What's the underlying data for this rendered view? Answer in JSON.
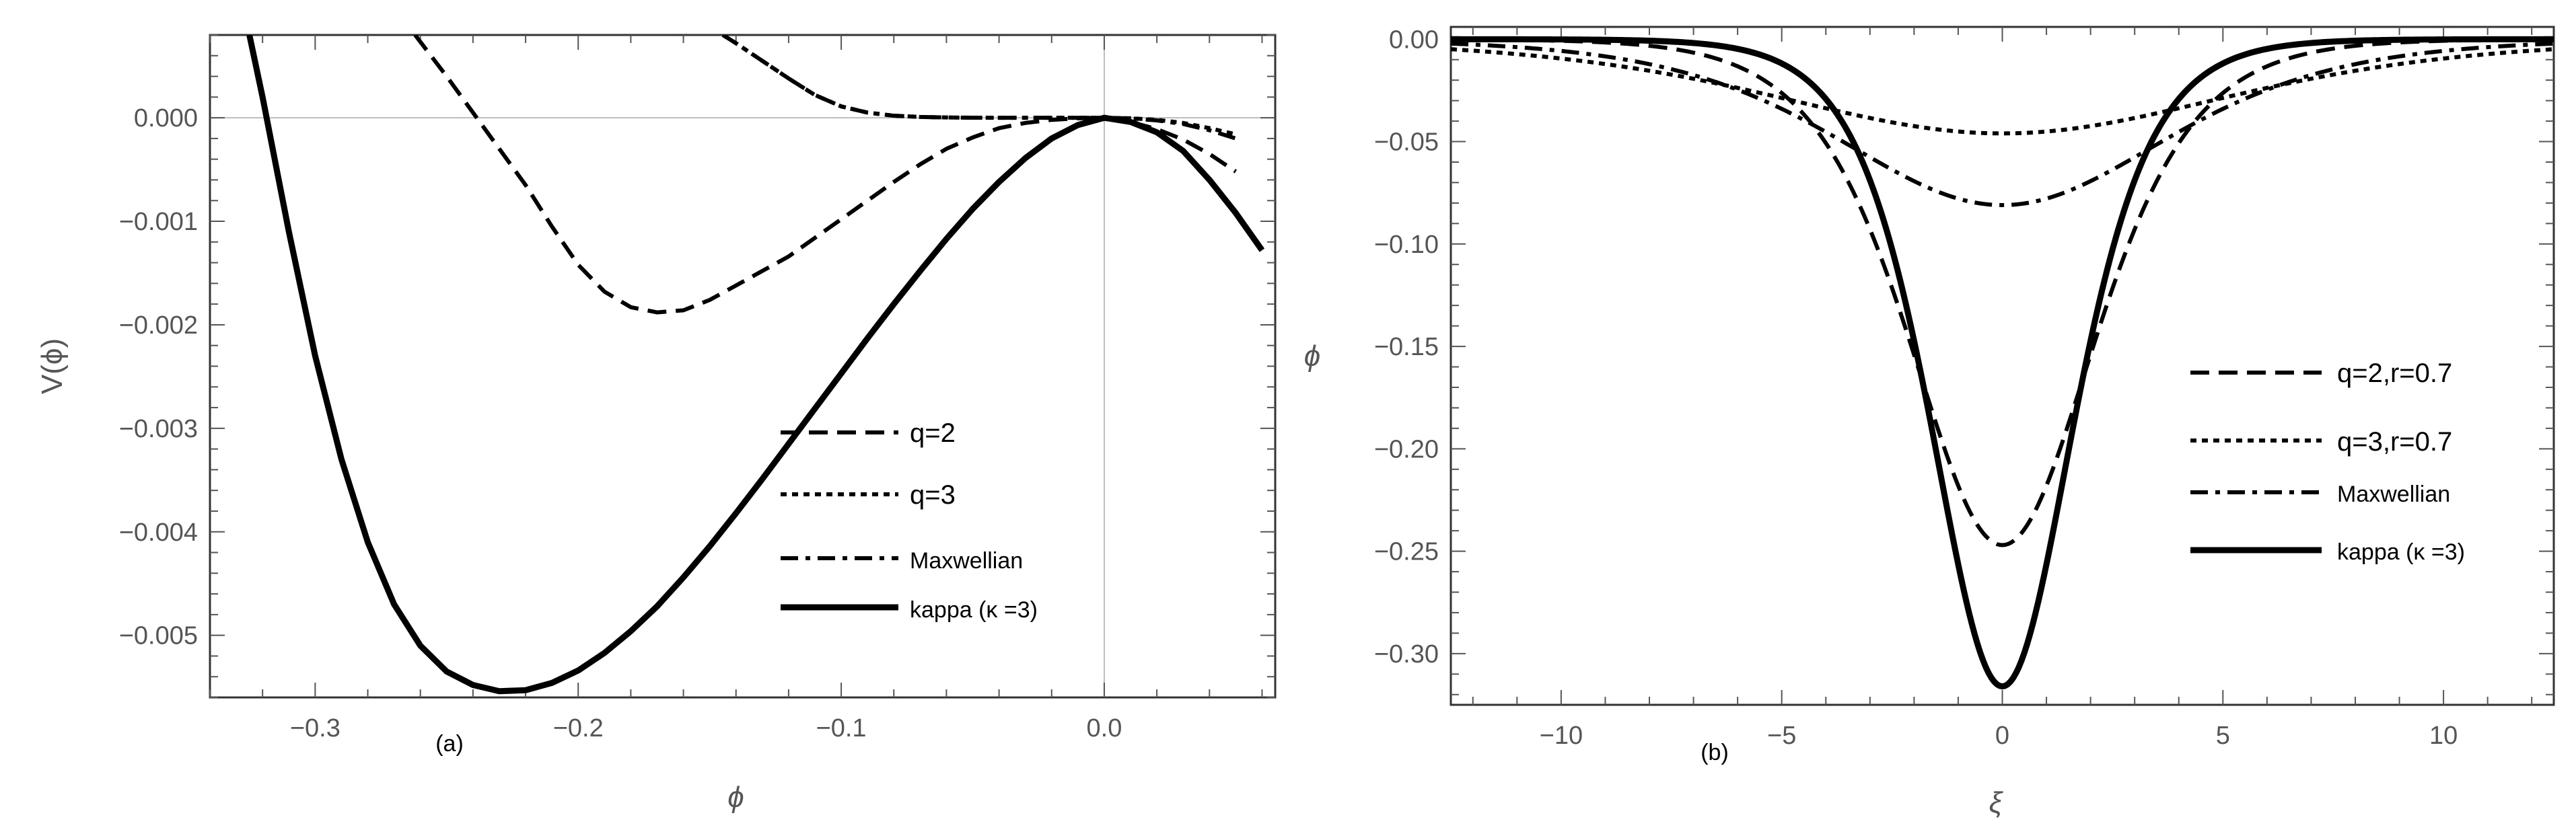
{
  "chart_data": [
    {
      "type": "line",
      "panel_label": "(a)",
      "title": "",
      "xlabel": "ϕ",
      "ylabel": "V(ϕ)",
      "xlim": [
        -0.34,
        0.065
      ],
      "ylim": [
        -0.0056,
        0.0008
      ],
      "xticks": [
        -0.3,
        -0.2,
        -0.1,
        0.0
      ],
      "xtick_labels": [
        "−0.3",
        "−0.2",
        "−0.1",
        "0.0"
      ],
      "yticks": [
        0.0,
        -0.001,
        -0.002,
        -0.003,
        -0.004,
        -0.005
      ],
      "ytick_labels": [
        "0.000",
        "−0.001",
        "−0.002",
        "−0.003",
        "−0.004",
        "−0.005"
      ],
      "grid": false,
      "legend_position": "lower-right",
      "series": [
        {
          "name": "q=2",
          "style": "dashed",
          "x": [
            -0.262,
            -0.25,
            -0.24,
            -0.23,
            -0.22,
            -0.21,
            -0.2,
            -0.19,
            -0.18,
            -0.17,
            -0.16,
            -0.15,
            -0.14,
            -0.13,
            -0.12,
            -0.11,
            -0.1,
            -0.09,
            -0.08,
            -0.07,
            -0.06,
            -0.05,
            -0.04,
            -0.03,
            -0.02,
            -0.01,
            0.0,
            0.01,
            0.02,
            0.03,
            0.04,
            0.05
          ],
          "y": [
            0.0008,
            0.0004,
            5e-05,
            -0.0003,
            -0.00065,
            -0.00105,
            -0.00142,
            -0.00168,
            -0.00183,
            -0.00188,
            -0.00186,
            -0.00176,
            -0.00162,
            -0.00148,
            -0.00134,
            -0.00116,
            -0.00098,
            -0.0008,
            -0.00062,
            -0.00045,
            -0.0003,
            -0.00019,
            -0.0001,
            -5e-05,
            -2e-05,
            -5e-06,
            0.0,
            -4e-05,
            -0.00011,
            -0.00021,
            -0.00035,
            -0.00052
          ]
        },
        {
          "name": "q=3",
          "style": "dotted",
          "x": [
            -0.145,
            -0.14,
            -0.13,
            -0.12,
            -0.11,
            -0.1,
            -0.09,
            -0.08,
            -0.07,
            -0.06,
            -0.05,
            -0.04,
            -0.03,
            -0.02,
            -0.01,
            0.0,
            0.01,
            0.02,
            0.03,
            0.04,
            0.05
          ],
          "y": [
            0.0008,
            0.00072,
            0.00055,
            0.00038,
            0.00022,
            0.00011,
            5e-05,
            2e-05,
            8e-06,
            3e-06,
            1e-06,
            0.0,
            0.0,
            0.0,
            0.0,
            0.0,
            -5e-06,
            -2e-05,
            -5e-05,
            -0.0001,
            -0.00016
          ]
        },
        {
          "name": "Maxwellian",
          "style": "dashdot",
          "x": [
            -0.145,
            -0.14,
            -0.13,
            -0.12,
            -0.11,
            -0.1,
            -0.09,
            -0.08,
            -0.07,
            -0.06,
            -0.05,
            -0.04,
            -0.03,
            -0.02,
            -0.01,
            0.0,
            0.01,
            0.02,
            0.03,
            0.04,
            0.05
          ],
          "y": [
            0.0008,
            0.00072,
            0.00055,
            0.00038,
            0.00022,
            0.00011,
            5e-05,
            2e-05,
            8e-06,
            3e-06,
            1e-06,
            0.0,
            0.0,
            0.0,
            0.0,
            0.0,
            -6e-06,
            -2.5e-05,
            -6e-05,
            -0.00012,
            -0.0002
          ]
        },
        {
          "name": "kappa (κ =3)",
          "style": "solid",
          "x": [
            -0.325,
            -0.32,
            -0.31,
            -0.3,
            -0.29,
            -0.28,
            -0.27,
            -0.26,
            -0.25,
            -0.24,
            -0.23,
            -0.22,
            -0.21,
            -0.2,
            -0.19,
            -0.18,
            -0.17,
            -0.16,
            -0.15,
            -0.14,
            -0.13,
            -0.12,
            -0.11,
            -0.1,
            -0.09,
            -0.08,
            -0.07,
            -0.06,
            -0.05,
            -0.04,
            -0.03,
            -0.02,
            -0.01,
            0.0,
            0.01,
            0.02,
            0.03,
            0.04,
            0.05,
            0.06
          ],
          "y": [
            0.0008,
            0.0002,
            -0.0011,
            -0.0023,
            -0.0033,
            -0.0041,
            -0.0047,
            -0.0051,
            -0.00535,
            -0.00548,
            -0.00554,
            -0.00553,
            -0.00546,
            -0.00534,
            -0.00517,
            -0.00496,
            -0.00472,
            -0.00444,
            -0.00414,
            -0.00382,
            -0.00349,
            -0.00315,
            -0.00281,
            -0.00247,
            -0.00213,
            -0.0018,
            -0.00148,
            -0.00117,
            -0.00088,
            -0.00062,
            -0.00039,
            -0.0002,
            -7e-05,
            0.0,
            -4e-05,
            -0.00014,
            -0.00032,
            -0.0006,
            -0.00092,
            -0.00128
          ]
        }
      ]
    },
    {
      "type": "line",
      "panel_label": "(b)",
      "title": "",
      "xlabel": "ξ",
      "ylabel": "ϕ",
      "xlim": [
        -12.5,
        12.5
      ],
      "ylim": [
        -0.325,
        0.006
      ],
      "xticks": [
        -10,
        -5,
        0,
        5,
        10
      ],
      "xtick_labels": [
        "−10",
        "−5",
        "0",
        "5",
        "10"
      ],
      "yticks": [
        0.0,
        -0.05,
        -0.1,
        -0.15,
        -0.2,
        -0.25,
        -0.3
      ],
      "ytick_labels": [
        "0.00",
        "−0.05",
        "−0.10",
        "−0.15",
        "−0.20",
        "−0.25",
        "−0.30"
      ],
      "grid": false,
      "legend_position": "right",
      "series": [
        {
          "name": "q=2,r=0.7",
          "style": "dashed",
          "peak": -0.247,
          "width": 2.8
        },
        {
          "name": "q=3,r=0.7",
          "style": "dotted",
          "peak": -0.046,
          "width": 7.0
        },
        {
          "name": "Maxwellian",
          "style": "dashdot",
          "peak": -0.081,
          "width": 5.0
        },
        {
          "name": "kappa (κ =3)",
          "style": "solid",
          "peak": -0.316,
          "width": 2.15
        }
      ]
    }
  ]
}
